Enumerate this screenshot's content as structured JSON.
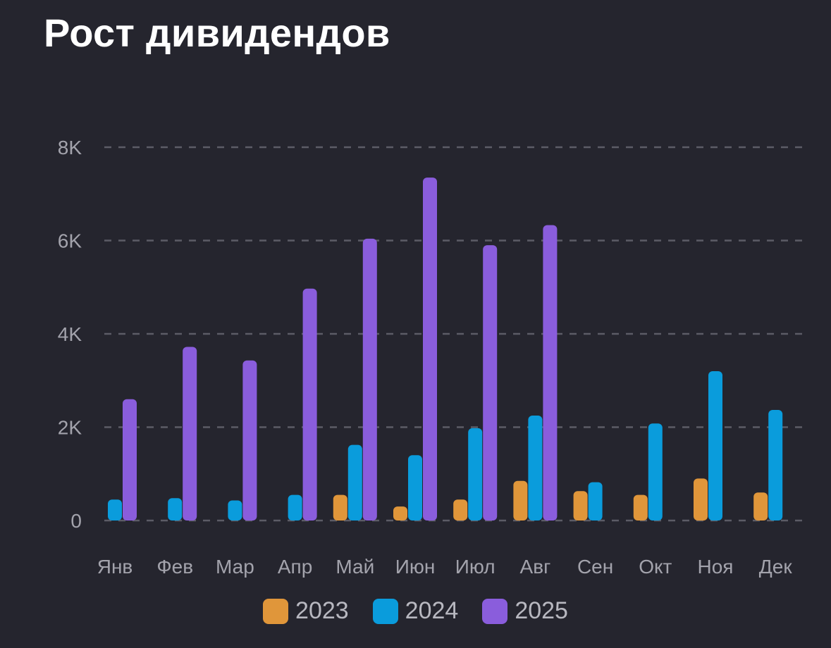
{
  "chart_data": {
    "type": "bar",
    "title": "Рост дивидендов",
    "xlabel": "",
    "ylabel": "",
    "categories": [
      "Янв",
      "Фев",
      "Мар",
      "Апр",
      "Май",
      "Июн",
      "Июл",
      "Авг",
      "Сен",
      "Окт",
      "Ноя",
      "Дек"
    ],
    "ylim": [
      0,
      8000
    ],
    "yticks": [
      0,
      2000,
      4000,
      6000,
      8000
    ],
    "ytick_labels": [
      "0",
      "2K",
      "4K",
      "6K",
      "8K"
    ],
    "grid": true,
    "legend_position": "bottom",
    "series": [
      {
        "name": "2023",
        "color": "#e0963a",
        "values": [
          null,
          null,
          null,
          null,
          550,
          300,
          450,
          850,
          630,
          550,
          900,
          600
        ]
      },
      {
        "name": "2024",
        "color": "#0a9cdc",
        "values": [
          450,
          480,
          430,
          550,
          1620,
          1400,
          1980,
          2250,
          820,
          2080,
          3200,
          2370
        ]
      },
      {
        "name": "2025",
        "color": "#8a5ddc",
        "values": [
          2600,
          3720,
          3430,
          4970,
          6040,
          7350,
          5900,
          6330,
          null,
          null,
          null,
          null
        ]
      }
    ]
  }
}
